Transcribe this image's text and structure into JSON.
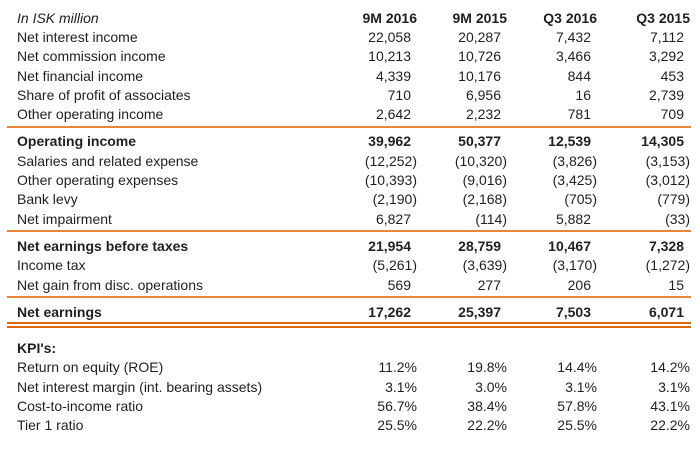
{
  "table": {
    "unit_label": "In ISK million",
    "columns": [
      "9M 2016",
      "9M 2015",
      "Q3 2016",
      "Q3 2015"
    ],
    "sections": [
      {
        "divider": "single",
        "rows": [
          {
            "label": "Net interest income",
            "bold": false,
            "values": [
              "22,058",
              "20,287",
              "7,432",
              "7,112"
            ]
          },
          {
            "label": "Net commission income",
            "bold": false,
            "values": [
              "10,213",
              "10,726",
              "3,466",
              "3,292"
            ]
          },
          {
            "label": "Net financial income",
            "bold": false,
            "values": [
              "4,339",
              "10,176",
              "844",
              "453"
            ]
          },
          {
            "label": "Share of profit of associates",
            "bold": false,
            "values": [
              "710",
              "6,956",
              "16",
              "2,739"
            ]
          },
          {
            "label": "Other operating income",
            "bold": false,
            "values": [
              "2,642",
              "2,232",
              "781",
              "709"
            ]
          }
        ]
      },
      {
        "divider": "single",
        "rows": [
          {
            "label": "Operating income",
            "bold": true,
            "values": [
              "39,962",
              "50,377",
              "12,539",
              "14,305"
            ]
          },
          {
            "label": "Salaries and related expense",
            "bold": false,
            "values": [
              "(12,252)",
              "(10,320)",
              "(3,826)",
              "(3,153)"
            ]
          },
          {
            "label": "Other operating expenses",
            "bold": false,
            "values": [
              "(10,393)",
              "(9,016)",
              "(3,425)",
              "(3,012)"
            ]
          },
          {
            "label": "Bank levy",
            "bold": false,
            "values": [
              "(2,190)",
              "(2,168)",
              "(705)",
              "(779)"
            ]
          },
          {
            "label": "Net impairment",
            "bold": false,
            "values": [
              "6,827",
              "(114)",
              "5,882",
              "(33)"
            ]
          }
        ]
      },
      {
        "divider": "single",
        "rows": [
          {
            "label": "Net earnings before taxes",
            "bold": true,
            "values": [
              "21,954",
              "28,759",
              "10,467",
              "7,328"
            ]
          },
          {
            "label": "Income tax",
            "bold": false,
            "values": [
              "(5,261)",
              "(3,639)",
              "(3,170)",
              "(1,272)"
            ]
          },
          {
            "label": "Net gain from disc. operations",
            "bold": false,
            "values": [
              "569",
              "277",
              "206",
              "15"
            ]
          }
        ]
      },
      {
        "divider": "double",
        "rows": [
          {
            "label": "Net earnings",
            "bold": true,
            "values": [
              "17,262",
              "25,397",
              "7,503",
              "6,071"
            ]
          }
        ]
      },
      {
        "divider": "none",
        "gap_before": true,
        "rows": [
          {
            "label": "KPI's:",
            "bold": true,
            "values": [
              "",
              "",
              "",
              ""
            ]
          },
          {
            "label": "Return on equity (ROE)",
            "bold": false,
            "values": [
              "11.2%",
              "19.8%",
              "14.4%",
              "14.2%"
            ]
          },
          {
            "label": "Net interest margin (int. bearing assets)",
            "bold": false,
            "values": [
              "3.1%",
              "3.0%",
              "3.1%",
              "3.1%"
            ]
          },
          {
            "label": "Cost-to-income ratio",
            "bold": false,
            "values": [
              "56.7%",
              "38.4%",
              "57.8%",
              "43.1%"
            ]
          },
          {
            "label": "Tier 1 ratio",
            "bold": false,
            "values": [
              "25.5%",
              "22.2%",
              "25.5%",
              "22.2%"
            ]
          }
        ]
      }
    ]
  },
  "colors": {
    "rule_single": "#E8853D",
    "rule_double": "#E2650D",
    "text": "#1F1F1F",
    "background": "#FFFFFF"
  }
}
